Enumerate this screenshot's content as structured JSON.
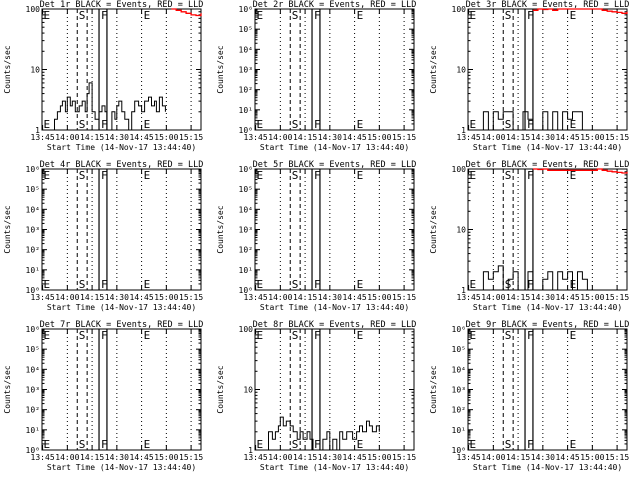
{
  "colors": {
    "events": "#000000",
    "lld": "#ff0000",
    "background": "#ffffff"
  },
  "chart_data": [
    {
      "title": "Det 1r BLACK = Events, RED = LLD",
      "type": "line",
      "yscale": "log",
      "ylim": [
        1,
        100
      ],
      "yticks": [
        "1",
        "10",
        "100"
      ],
      "ylabel": "Counts/sec",
      "xlabel": "Start Time (14-Nov-17 13:44:40)",
      "xticks": [
        "13:45",
        "14:00",
        "14:15",
        "14:30",
        "14:45",
        "15:00",
        "15:15"
      ],
      "markers": [
        "E",
        "S",
        "F",
        "E"
      ],
      "series": [
        {
          "color": "black",
          "x": [
            13.83,
            13.87,
            13.9,
            13.93,
            13.95,
            13.98,
            14.0,
            14.03,
            14.05,
            14.08,
            14.12,
            14.15,
            14.18,
            14.2,
            14.22,
            14.25,
            14.28,
            14.32,
            14.35,
            14.38,
            14.4,
            14.42,
            14.45,
            14.48,
            14.5,
            14.52,
            14.55,
            14.58,
            14.62,
            14.65,
            14.68,
            14.72,
            14.75,
            14.78,
            14.82,
            14.85,
            14.88,
            14.9,
            14.93,
            14.96,
            14.99
          ],
          "y": [
            1,
            1.5,
            2,
            2.5,
            3,
            2,
            3.5,
            2.5,
            3,
            2,
            2.5,
            3,
            2,
            4,
            6,
            2,
            1.5,
            2,
            2.5,
            2,
            1,
            1,
            2,
            1.5,
            2.5,
            3,
            2,
            1.5,
            1,
            2,
            3,
            2.5,
            2,
            3,
            3.5,
            2.5,
            3,
            2,
            3.5,
            2.5,
            2
          ]
        },
        {
          "color": "red",
          "x": [
            15.05,
            15.1,
            15.15,
            15.2,
            15.25,
            15.3,
            15.35
          ],
          "y": [
            100,
            95,
            90,
            85,
            80,
            78,
            85
          ]
        }
      ]
    },
    {
      "title": "Det 2r BLACK = Events, RED = LLD",
      "type": "line",
      "yscale": "log",
      "ylim": [
        1,
        1000000
      ],
      "yticks": [
        "10⁰",
        "10¹",
        "10²",
        "10³",
        "10⁴",
        "10⁵",
        "10⁶"
      ],
      "ylabel": "Counts/sec",
      "xlabel": "Start Time (14-Nov-17 13:44:40)",
      "xticks": [
        "13:45",
        "14:00",
        "14:15",
        "14:30",
        "14:45",
        "15:00",
        "15:15"
      ],
      "markers": [
        "E",
        "S",
        "F",
        "E"
      ],
      "series": []
    },
    {
      "title": "Det 3r BLACK = Events, RED = LLD",
      "type": "line",
      "yscale": "log",
      "ylim": [
        1,
        100
      ],
      "yticks": [
        "1",
        "10",
        "100"
      ],
      "ylabel": "Counts/sec",
      "xlabel": "Start Time (14-Nov-17 13:44:40)",
      "xticks": [
        "13:45",
        "14:00",
        "14:15",
        "14:30",
        "14:45",
        "15:00",
        "15:15"
      ],
      "markers": [
        "E",
        "S",
        "F",
        "E"
      ],
      "series": [
        {
          "color": "black",
          "x": [
            13.85,
            13.9,
            13.95,
            14.0,
            14.05,
            14.1,
            14.15,
            14.2,
            14.25,
            14.3,
            14.35,
            14.4,
            14.45,
            14.5,
            14.55,
            14.6,
            14.65,
            14.7,
            14.75,
            14.8,
            14.85,
            14.9,
            14.95
          ],
          "y": [
            1,
            2,
            1,
            2,
            1.5,
            2,
            2,
            1,
            1,
            2,
            1.5,
            1,
            1,
            2,
            1,
            2,
            1,
            2,
            1.5,
            2,
            2,
            1,
            1
          ]
        },
        {
          "color": "red",
          "x": [
            14.4,
            14.45,
            14.5,
            14.55,
            14.6,
            14.65,
            15.05,
            15.1,
            15.15,
            15.2,
            15.25,
            15.3,
            15.35
          ],
          "y": [
            95,
            100,
            98,
            100,
            95,
            100,
            100,
            95,
            92,
            90,
            88,
            85,
            90
          ]
        }
      ]
    },
    {
      "title": "Det 4r BLACK = Events, RED = LLD",
      "type": "line",
      "yscale": "log",
      "ylim": [
        1,
        1000000
      ],
      "yticks": [
        "10⁰",
        "10¹",
        "10²",
        "10³",
        "10⁴",
        "10⁵",
        "10⁶"
      ],
      "ylabel": "Counts/sec",
      "xlabel": "Start Time (14-Nov-17 13:44:40)",
      "xticks": [
        "13:45",
        "14:00",
        "14:15",
        "14:30",
        "14:45",
        "15:00",
        "15:15"
      ],
      "markers": [
        "E",
        "S",
        "F",
        "E"
      ],
      "series": []
    },
    {
      "title": "Det 5r BLACK = Events, RED = LLD",
      "type": "line",
      "yscale": "log",
      "ylim": [
        1,
        1000000
      ],
      "yticks": [
        "10⁰",
        "10¹",
        "10²",
        "10³",
        "10⁴",
        "10⁵",
        "10⁶"
      ],
      "ylabel": "Counts/sec",
      "xlabel": "Start Time (14-Nov-17 13:44:40)",
      "xticks": [
        "13:45",
        "14:00",
        "14:15",
        "14:30",
        "14:45",
        "15:00",
        "15:15"
      ],
      "markers": [
        "E",
        "S",
        "F",
        "E"
      ],
      "series": []
    },
    {
      "title": "Det 6r BLACK = Events, RED = LLD",
      "type": "line",
      "yscale": "log",
      "ylim": [
        1,
        100
      ],
      "yticks": [
        "1",
        "10",
        "100"
      ],
      "ylabel": "Counts/sec",
      "xlabel": "Start Time (14-Nov-17 13:44:40)",
      "xticks": [
        "13:45",
        "14:00",
        "14:15",
        "14:30",
        "14:45",
        "15:00",
        "15:15"
      ],
      "markers": [
        "E",
        "S",
        "F",
        "E"
      ],
      "series": [
        {
          "color": "black",
          "x": [
            13.85,
            13.9,
            13.95,
            14.0,
            14.05,
            14.1,
            14.15,
            14.2,
            14.25,
            14.3,
            14.35,
            14.4,
            14.45,
            14.5,
            14.55,
            14.6,
            14.65,
            14.7,
            14.75,
            14.8,
            14.85,
            14.9,
            14.95
          ],
          "y": [
            1,
            2,
            1.5,
            2,
            2.5,
            1,
            1.5,
            2,
            1,
            1,
            2,
            1,
            1,
            1.5,
            2,
            1,
            2,
            1.5,
            2,
            1,
            2,
            1.5,
            1
          ]
        },
        {
          "color": "red",
          "x": [
            14.4,
            14.45,
            14.5,
            14.55,
            15.05,
            15.1,
            15.15,
            15.2,
            15.25,
            15.3,
            15.35
          ],
          "y": [
            100,
            98,
            100,
            95,
            100,
            95,
            92,
            90,
            88,
            86,
            90
          ]
        }
      ]
    },
    {
      "title": "Det 7r BLACK = Events, RED = LLD",
      "type": "line",
      "yscale": "log",
      "ylim": [
        1,
        1000000
      ],
      "yticks": [
        "10⁰",
        "10¹",
        "10²",
        "10³",
        "10⁴",
        "10⁵",
        "10⁶"
      ],
      "ylabel": "Counts/sec",
      "xlabel": "Start Time (14-Nov-17 13:44:40)",
      "xticks": [
        "13:45",
        "14:00",
        "14:15",
        "14:30",
        "14:45",
        "15:00",
        "15:15"
      ],
      "markers": [
        "E",
        "S",
        "F",
        "E"
      ],
      "series": []
    },
    {
      "title": "Det 8r BLACK = Events, RED = LLD",
      "type": "line",
      "yscale": "log",
      "ylim": [
        1,
        100
      ],
      "yticks": [
        "1",
        "10",
        "100"
      ],
      "ylabel": "Counts/sec",
      "xlabel": "Start Time (14-Nov-17 13:44:40)",
      "xticks": [
        "13:45",
        "14:00",
        "14:15",
        "14:30",
        "14:45",
        "15:00",
        "15:15"
      ],
      "markers": [
        "E",
        "S",
        "F",
        "E"
      ],
      "series": [
        {
          "color": "black",
          "x": [
            13.85,
            13.88,
            13.92,
            13.95,
            13.98,
            14.0,
            14.03,
            14.06,
            14.1,
            14.13,
            14.17,
            14.2,
            14.23,
            14.27,
            14.3,
            14.33,
            14.37,
            14.4,
            14.43,
            14.47,
            14.5,
            14.53,
            14.57,
            14.6,
            14.63,
            14.67,
            14.7,
            14.73,
            14.77,
            14.8,
            14.83,
            14.87,
            14.9,
            14.93,
            14.97,
            15.0
          ],
          "y": [
            1,
            2,
            1.5,
            2,
            2.5,
            3.5,
            2.5,
            3,
            2.5,
            2,
            1.5,
            2,
            1.5,
            2,
            1.5,
            1,
            1,
            1,
            1.5,
            2,
            1,
            1.5,
            1,
            2,
            1.5,
            2,
            2,
            1.5,
            2,
            2.5,
            2,
            3,
            2.5,
            2,
            2.5,
            2
          ]
        }
      ]
    },
    {
      "title": "Det 9r BLACK = Events, RED = LLD",
      "type": "line",
      "yscale": "log",
      "ylim": [
        1,
        1000000
      ],
      "yticks": [
        "10⁰",
        "10¹",
        "10²",
        "10³",
        "10⁴",
        "10⁵",
        "10⁶"
      ],
      "ylabel": "Counts/sec",
      "xlabel": "Start Time (14-Nov-17 13:44:40)",
      "xticks": [
        "13:45",
        "14:00",
        "14:15",
        "14:30",
        "14:45",
        "15:00",
        "15:15"
      ],
      "markers": [
        "E",
        "S",
        "F",
        "E"
      ],
      "series": []
    }
  ],
  "event_times": [
    13.75,
    14.1,
    14.2,
    14.32,
    14.4,
    14.76
  ],
  "tick_hours": [
    13.75,
    14.0,
    14.25,
    14.5,
    14.75,
    15.0,
    15.25
  ]
}
